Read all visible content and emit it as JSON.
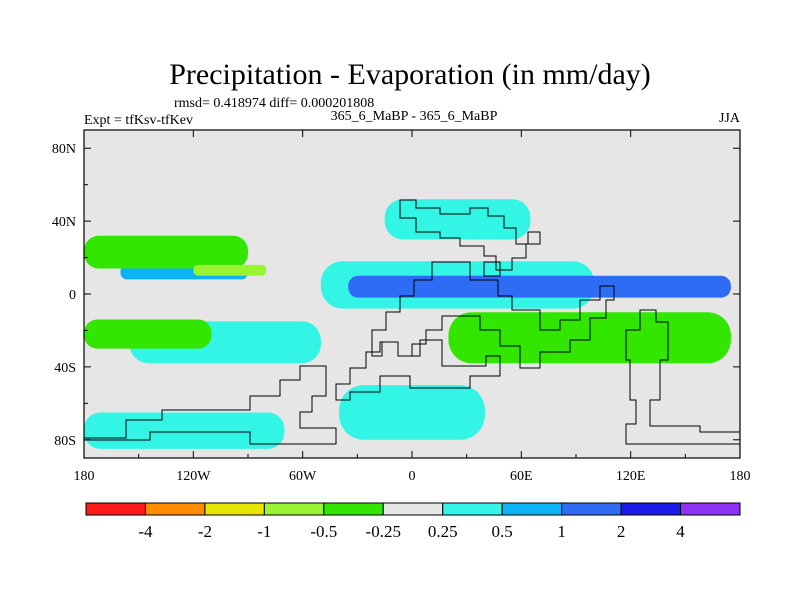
{
  "chart_data": {
    "type": "heatmap",
    "title": "Precipitation - Evaporation (in mm/day)",
    "stats_line": "rmsd= 0.418974 diff= 0.000201808",
    "left_label": "Expt = tfKsv-tfKev",
    "center_label": "365_6_MaBP - 365_6_MaBP",
    "right_label": "JJA",
    "x_axis": {
      "range": [
        -180,
        180
      ],
      "ticks": [
        {
          "value": -180,
          "label": "180"
        },
        {
          "value": -120,
          "label": "120W"
        },
        {
          "value": -60,
          "label": "60W"
        },
        {
          "value": 0,
          "label": "0"
        },
        {
          "value": 60,
          "label": "60E"
        },
        {
          "value": 120,
          "label": "120E"
        },
        {
          "value": 180,
          "label": "180"
        }
      ]
    },
    "y_axis": {
      "range": [
        -90,
        90
      ],
      "ticks": [
        {
          "value": 80,
          "label": "80N"
        },
        {
          "value": 40,
          "label": "40N"
        },
        {
          "value": 0,
          "label": "0"
        },
        {
          "value": -40,
          "label": "40S"
        },
        {
          "value": -80,
          "label": "80S"
        }
      ]
    },
    "colorbar": {
      "colors": [
        "#ff1a1a",
        "#ff8c00",
        "#e6e600",
        "#99f533",
        "#33e600",
        "#e6e6e6",
        "#33f5e6",
        "#0db4f5",
        "#2f6cf5",
        "#1a1ae6",
        "#8c33f5"
      ],
      "labels": [
        "-4",
        "-2",
        "-1",
        "-0.5",
        "-0.25",
        "0.25",
        "0.5",
        "1",
        "2",
        "4"
      ]
    },
    "regions": [
      {
        "level": "0.5",
        "color": "#33f5e6",
        "lon": [
          -155,
          -50
        ],
        "lat": [
          -38,
          -15
        ],
        "desc": "cyan band SE Pacific"
      },
      {
        "level": "0.5",
        "color": "#33f5e6",
        "lon": [
          -50,
          100
        ],
        "lat": [
          -8,
          18
        ],
        "desc": "equatorial cyan band"
      },
      {
        "level": "2",
        "color": "#2f6cf5",
        "lon": [
          -35,
          175
        ],
        "lat": [
          -2,
          10
        ],
        "desc": "equatorial blue band"
      },
      {
        "level": "1",
        "color": "#0db4f5",
        "lon": [
          -160,
          -90
        ],
        "lat": [
          8,
          16
        ],
        "desc": "NE Pacific blue"
      },
      {
        "level": "-0.25",
        "color": "#33e600",
        "lon": [
          -180,
          -90
        ],
        "lat": [
          14,
          32
        ],
        "desc": "N Pacific green"
      },
      {
        "level": "-1",
        "color": "#99f533",
        "lon": [
          -120,
          -80
        ],
        "lat": [
          10,
          16
        ],
        "desc": "N Pacific yellow-green"
      },
      {
        "level": "-0.25",
        "color": "#33e600",
        "lon": [
          -180,
          -110
        ],
        "lat": [
          -30,
          -14
        ],
        "desc": "S Pacific green"
      },
      {
        "level": "-0.25",
        "color": "#33e600",
        "lon": [
          20,
          175
        ],
        "lat": [
          -38,
          -10
        ],
        "desc": "S Indian Ocean green"
      },
      {
        "level": "0.5",
        "color": "#33f5e6",
        "lon": [
          -180,
          -70
        ],
        "lat": [
          -85,
          -65
        ],
        "desc": "Southern Ocean cyan"
      },
      {
        "level": "0.5",
        "color": "#33f5e6",
        "lon": [
          -40,
          40
        ],
        "lat": [
          -80,
          -50
        ],
        "desc": "South Atlantic cyan"
      },
      {
        "level": "0.5",
        "color": "#33f5e6",
        "lon": [
          -15,
          65
        ],
        "lat": [
          30,
          52
        ],
        "desc": "northern cyan patch"
      }
    ]
  }
}
